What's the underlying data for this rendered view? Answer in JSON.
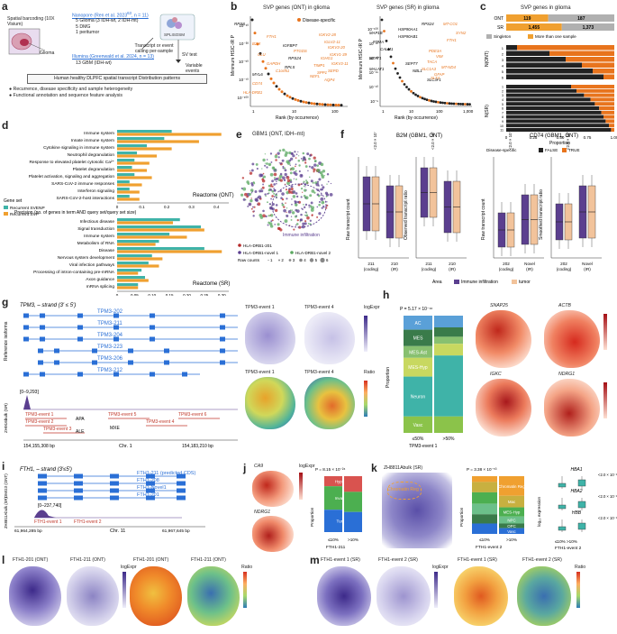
{
  "panels": {
    "a": {
      "letter": "a",
      "spatial_label": "Spatial barcoding (10X Visium)",
      "glioma": "Glioma",
      "nanopore_title": "Nanopore (Ren et al. 2023",
      "nanopore_ref": "63",
      "nanopore_n": ", n = 11)",
      "nanopore_lines": [
        "5 Glioma (3 IDH-wt, 2 IDH-mt)",
        "5 DMG",
        "1 peritumor"
      ],
      "illumina_title": "Illumina (Greenwald et al. 2024, n = 13)",
      "illumina_lines": [
        "13 GBM (IDH-wt)"
      ],
      "splisosm": "SPLISOSM",
      "transcript_calling": "Transcript or event calling per-sample",
      "sv_test": "SV test",
      "variable_events": "Variable events",
      "atlas": "Human healthy DLPFC spatial transcript Distribution patterns",
      "bullets": [
        "Recurrence, disease specificity and sample heterogeneity",
        "Functional annotation and sequence feature analysis"
      ]
    },
    "b": {
      "letter": "b",
      "left_title": "SVP genes (ONT) in glioma",
      "right_title": "SVP genes (SR) in glioma",
      "ylabel": "Minimum HSIC-IR P",
      "xlabel": "Rank (by occurrence)",
      "legend": "Disease-specific",
      "left_yticks": [
        "10⁻¹⁰",
        "10⁻³⁰",
        "10⁻⁵⁰",
        "10⁻⁷⁰",
        "10⁻¹⁰⁰"
      ],
      "left_xticks": [
        "1",
        "10",
        "100"
      ],
      "right_yticks": [
        "10⁻⁵",
        "10⁻¹⁰",
        "10⁻¹⁵",
        "10⁻²⁰",
        "10⁻³⁰",
        "10⁻¹⁰⁰"
      ],
      "right_xticks": [
        "1",
        "10",
        "100",
        "1,000"
      ],
      "left_genes_black": [
        "RPS8",
        "IGFBP7",
        "MYL6",
        "RPS24",
        "RPL5"
      ],
      "left_genes_orange": [
        "FTH1",
        "B2M",
        "CLU",
        "GAPDH",
        "C1orf61",
        "CD74",
        "HLA-DRB1",
        "IGKV2-28",
        "IGLV2-11",
        "PTGDS",
        "IGKV3-20",
        "IGKV1-39",
        "TIMP1",
        "SPP1",
        "NEFL",
        "IGHG1",
        "AQP4",
        "SEPD",
        "IGKV3-11"
      ],
      "right_genes_black": [
        "MAP1B",
        "PTMA",
        "CALM1",
        "NEAT1",
        "MALAT1",
        "HSP90AA1",
        "HSP90AB1",
        "SEPT7",
        "NBL1",
        "RPS24",
        "SLC3F1"
      ],
      "right_genes_orange": [
        "MT-CO1",
        "SYN2",
        "FTH1",
        "PDE3A",
        "VIM",
        "TACA",
        "MT-ND4",
        "SLC1A3",
        "GFAP",
        "SLT4"
      ]
    },
    "c": {
      "letter": "c",
      "title": "SVP genes in glioma",
      "rows": [
        {
          "label": "ONT",
          "singleton": 119,
          "multi": 187
        },
        {
          "label": "SR",
          "singleton": 1455,
          "multi": 1373
        }
      ],
      "legend_singleton": "Singleton",
      "legend_multi": "More than one sample",
      "y1": "N(ONT)",
      "y2": "N(SR)",
      "xlabel": "Proportion",
      "xticks": [
        "0",
        "0.25",
        "0.50",
        "0.75",
        "1.00"
      ],
      "legend_title": "Disease-specific",
      "legend_false": "FALSE",
      "legend_true": "TRUE"
    },
    "d": {
      "letter": "d",
      "terms_ont": [
        "Immune system",
        "Innate immune system",
        "Cytokine signaling in immune system",
        "Neutrophil degranulation",
        "Response to elevated platelet cytosolic Ca²⁺",
        "Platelet degranulation",
        "Platelet activation, signaling and aggregation",
        "SARS-CoV-2 immune responses",
        "Interferon signaling",
        "SARS-CoV-2-host interactions"
      ],
      "ont_label": "Reactome (ONT)",
      "terms_sr": [
        "Infectious disease",
        "Signal transduction",
        "Immune system",
        "Metabolism of RNA",
        "Disease",
        "Nervous system development",
        "Viral infection pathways",
        "Processing of intron-containing pre-mRNA",
        "Axon guidance",
        "mRNA splicing"
      ],
      "sr_label": "Reactome (SR)",
      "xlabel": "Precision (no. of genes in term AND query set/query set size)",
      "xticks_ont": [
        "0",
        "0.1",
        "0.2",
        "0.3",
        "0.4"
      ],
      "xticks_sr": [
        "0",
        "0.05",
        "0.10",
        "0.15",
        "0.20",
        "0.25",
        "0.30"
      ],
      "legend_title": "Gene set",
      "legend_svenp": "Recurrent SVENP",
      "legend_svp": "Recurrent SVP"
    },
    "e": {
      "letter": "e",
      "title": "GBM1 (ONT, IDH–mt)",
      "label_immune": "Immune infiltration",
      "legend": [
        "HLA-DRB1-201",
        "HLA-DRB1-novel 1",
        "HLA-DRB1-novel 2"
      ],
      "raw_counts": "Raw counts",
      "raw_values": [
        "1",
        "2",
        "3",
        "4",
        "5",
        "6"
      ]
    },
    "f": {
      "letter": "f",
      "left_title": "B2M (GBM1, ONT)",
      "right_title": "CD74 (GBM1, ONT)",
      "y1": "Raw transcript count",
      "y2": "Observed transcript ratio",
      "y3": "Raw transcript count",
      "y4": "Smoothed transcript ratio",
      "pvals": [
        "<2.0 × 10⁻¹⁶",
        "<2.0 × 10⁻¹⁶",
        "<2.0 × 10⁻¹⁶",
        "<2.0 × 10⁻¹⁶"
      ],
      "x_b2m": [
        "211 (coding)",
        "210 (IR)"
      ],
      "x_cd74": [
        "202 (coding)",
        "Novel (IR)"
      ],
      "legend_area": "Area",
      "legend_immune": "Immune infiltration",
      "legend_tumor": "tumor"
    },
    "g": {
      "letter": "g",
      "title": "TPM3, – strand (3′ ≤ 5′)",
      "side_label": "Reference isoforms",
      "isoforms": [
        "TPM3-202",
        "TPM3-211",
        "TPM3-204",
        "TPM3-223",
        "TPM3-206",
        "TPM3-212"
      ],
      "coverage": "[0–9,293]",
      "bulk_label": "ZH916bulk (SR)",
      "events": [
        "TPM3-event 1",
        "TPM3-event 2",
        "TPM3-event 3",
        "TPM3-event 5",
        "TPM3-event 6",
        "TPM3-event 4"
      ],
      "apa": "APA",
      "ale": "ALE",
      "mxe": "MXE",
      "chrom": "Chr. 1",
      "coord_left": "154,155,308 bp",
      "coord_right": "154,183,210 bp",
      "map_titles": [
        "TPM3-event 1",
        "TPM3-event 4",
        "TPM3-event 1",
        "TPM3-event 4"
      ],
      "legend_expr": "logExpr",
      "legend_ratio": "Ratio"
    },
    "h": {
      "letter": "h",
      "pval": "P = 5.17 × 10⁻¹⁶",
      "segments": [
        "AC",
        "MES",
        "MES-Ast",
        "MES-Hyp",
        "Neuron",
        "Vasc"
      ],
      "ylabel": "Proportion",
      "xlabels": [
        "≤50%",
        ">50%"
      ],
      "xtitle": "TPM3-event 1",
      "genes": [
        "SNAP25",
        "ACTB",
        "IGKC",
        "NDRG1"
      ]
    },
    "i": {
      "letter": "i",
      "title": "FTH1, – strand (3′≤5′)",
      "isoforms": [
        "FTH1-211 (predicted CDS)",
        "FTH1-208",
        "FTH1-Novel1",
        "FTH1-201"
      ],
      "side_top": "DMG3 (ONT)",
      "side_bot": "ZH8811Abulk (SR)",
      "coverage": "[0–237,740]",
      "events": [
        "FTH1-event 1",
        "FTH1-event 2"
      ],
      "chrom": "Chr. 11",
      "coord_left": "61,964,285 bp",
      "coord_right": "61,967,645 bp"
    },
    "j": {
      "letter": "j",
      "genes": [
        "CA9",
        "NDRG1"
      ],
      "legend_expr": "logExpr",
      "pval": "P = 8.15 × 10⁻²⁶",
      "segments": [
        "Hypoxia",
        "Invasive",
        "Tumor"
      ],
      "xlabels": [
        "≤10%",
        ">10%"
      ],
      "xtitle": "FTH1-211",
      "ylabel": "Proportion"
    },
    "k": {
      "letter": "k",
      "title": "ZH8811Abulk (SR)",
      "annot": "Chromatin Reg",
      "pval": "P = 3.38 × 10⁻⁵³",
      "segments": [
        "Chromatin Reg",
        "Mac",
        "MES-Hyp",
        "NPC",
        "OPC",
        "Vasc"
      ],
      "xlabels": [
        "≤10%",
        ">10%"
      ],
      "xtitle": "FTH1-event 2",
      "ylabel": "Proportion",
      "genes": [
        "HBA1",
        "HBA2",
        "HBB"
      ],
      "pvals": [
        "<2.0 × 10⁻¹⁶",
        "<2.0 × 10⁻¹⁶",
        "<2.0 × 10⁻¹⁶"
      ],
      "box_x": "≤10%   >10%",
      "box_title": "FTH1-event 2",
      "box_y": "log₁₀ expression"
    },
    "l": {
      "letter": "l",
      "titles": [
        "FTH1-201 (ONT)",
        "FTH1-211 (ONT)",
        "FTH1-201 (ONT)",
        "FTH1-211 (ONT)"
      ],
      "legends": [
        "logExpr",
        "Ratio"
      ]
    },
    "m": {
      "letter": "m",
      "titles": [
        "FTH1-event 1 (SR)",
        "FTH1-event 2 (SR)",
        "FTH1-event 1 (SR)",
        "FTH1-event 2 (SR)"
      ],
      "legends": [
        "logExpr",
        "Ratio"
      ]
    }
  },
  "colors": {
    "orange": "#e8741d",
    "purple": "#5b3f8f",
    "peach": "#f2c39b",
    "teal": "#3fb3a8",
    "gold": "#f0a030",
    "black": "#222222",
    "gray": "#b0b0b0",
    "blue": "#2a6fd6",
    "red": "#c0392b"
  },
  "chart_data": [
    {
      "type": "bar",
      "title": "SVP genes in glioma",
      "categories": [
        "ONT",
        "SR"
      ],
      "series": [
        {
          "name": "Singleton",
          "values": [
            119,
            1455
          ]
        },
        {
          "name": "More than one sample",
          "values": [
            187,
            1373
          ]
        }
      ]
    },
    {
      "type": "bar",
      "title": "Reactome (ONT)",
      "categories": [
        "Immune system",
        "Innate immune system",
        "Cytokine signaling in immune system",
        "Neutrophil degranulation",
        "Response to elevated platelet cytosolic Ca2+",
        "Platelet degranulation",
        "Platelet activation, signaling and aggregation",
        "SARS-CoV-2 immune responses",
        "Interferon signaling",
        "SARS-CoV-2-host interactions"
      ],
      "series": [
        {
          "name": "Recurrent SVENP",
          "values": [
            0.22,
            0.19,
            0.12,
            0.08,
            0.07,
            0.06,
            0.07,
            0.05,
            0.05,
            0.05
          ]
        },
        {
          "name": "Recurrent SVP",
          "values": [
            0.42,
            0.33,
            0.22,
            0.16,
            0.13,
            0.12,
            0.14,
            0.1,
            0.09,
            0.09
          ]
        }
      ],
      "xlim": [
        0,
        0.45
      ]
    },
    {
      "type": "bar",
      "title": "Reactome (SR)",
      "categories": [
        "Infectious disease",
        "Signal transduction",
        "Immune system",
        "Metabolism of RNA",
        "Disease",
        "Nervous system development",
        "Viral infection pathways",
        "Processing of intron-containing pre-mRNA",
        "Axon guidance",
        "mRNA splicing"
      ],
      "series": [
        {
          "name": "Recurrent SVENP",
          "values": [
            0.18,
            0.24,
            0.15,
            0.12,
            0.25,
            0.1,
            0.09,
            0.07,
            0.08,
            0.06
          ]
        },
        {
          "name": "Recurrent SVP",
          "values": [
            0.16,
            0.25,
            0.2,
            0.11,
            0.3,
            0.13,
            0.12,
            0.06,
            0.09,
            0.06
          ]
        }
      ],
      "xlim": [
        0,
        0.32
      ]
    }
  ]
}
